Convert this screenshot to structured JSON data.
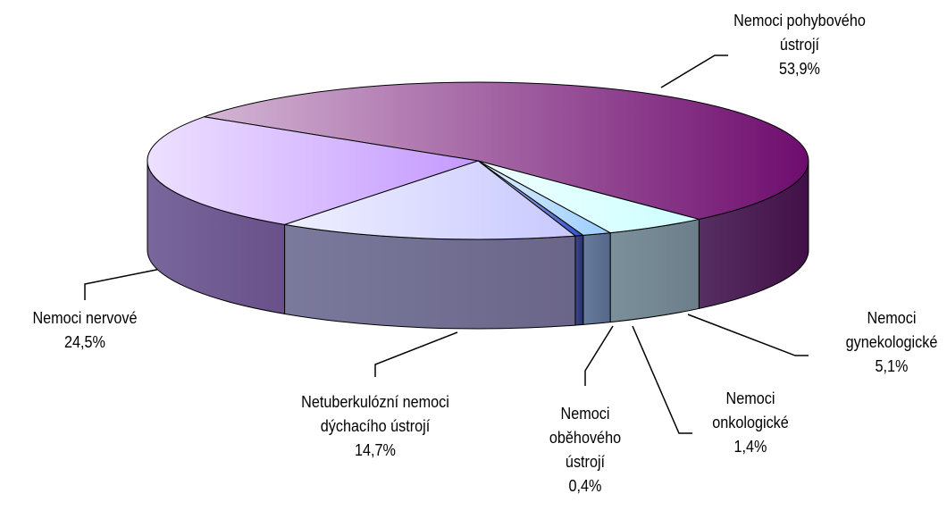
{
  "chart_data": {
    "type": "pie3d",
    "categories": [
      "Nemoci pohybového ústrojí",
      "Nemoci gynekologické",
      "Nemoci onkologické",
      "Nemoci oběhového ústrojí",
      "Netuberkulózní nemoci dýchacího ústrojí",
      "Nemoci nervové"
    ],
    "values": [
      53.9,
      5.1,
      1.4,
      0.4,
      14.7,
      24.5
    ],
    "value_labels": [
      "53,9%",
      "5,1%",
      "1,4%",
      "0,4%",
      "14,7%",
      "24,5%"
    ],
    "colors": [
      "#6e0c6e",
      "#ccffff",
      "#99ccff",
      "#2f4fc4",
      "#c8c8ff",
      "#c499ff"
    ]
  }
}
